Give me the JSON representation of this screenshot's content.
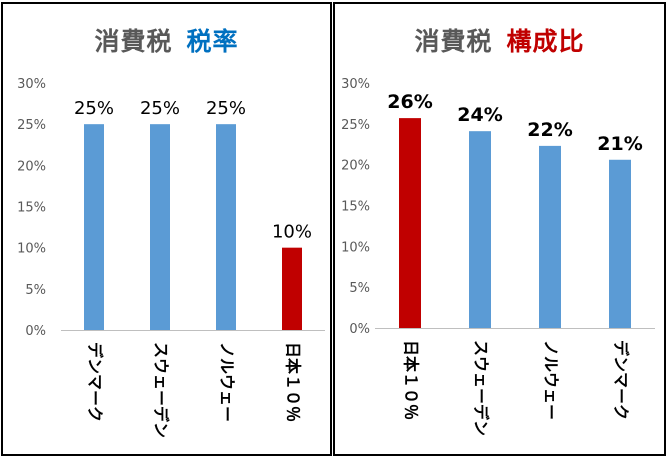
{
  "colors": {
    "blue_bar": "#5b9bd5",
    "red_bar": "#c00000",
    "title_gray": "#595959",
    "title_blue": "#0070c0",
    "title_red": "#c00000",
    "axis_text": "#595959",
    "grid": "#d9d9d9"
  },
  "chart_data": [
    {
      "type": "bar",
      "title_part1": "消費税",
      "title_part2": "税率",
      "title_part2_color": "#0070c0",
      "categories": [
        "デンマーク",
        "スウェーデン",
        "ノルウェー",
        "日本１０％"
      ],
      "values": [
        25,
        25,
        25,
        10
      ],
      "data_labels": [
        "25%",
        "25%",
        "25%",
        "10%"
      ],
      "bar_colors": [
        "#5b9bd5",
        "#5b9bd5",
        "#5b9bd5",
        "#c00000"
      ],
      "label_bold": false,
      "ylim": [
        0,
        30
      ],
      "yticks": [
        "0%",
        "5%",
        "10%",
        "15%",
        "20%",
        "25%",
        "30%"
      ],
      "grid": false,
      "legend": "none"
    },
    {
      "type": "bar",
      "title_part1": "消費税",
      "title_part2": "構成比",
      "title_part2_color": "#c00000",
      "categories": [
        "日本１０％",
        "スウェーデン",
        "ノルウェー",
        "デンマーク"
      ],
      "values": [
        25.7,
        24.1,
        22.3,
        20.6
      ],
      "data_labels": [
        "26%",
        "24%",
        "22%",
        "21%"
      ],
      "bar_colors": [
        "#c00000",
        "#5b9bd5",
        "#5b9bd5",
        "#5b9bd5"
      ],
      "label_bold": true,
      "ylim": [
        0,
        30
      ],
      "yticks": [
        "0%",
        "5%",
        "10%",
        "15%",
        "20%",
        "25%",
        "30%"
      ],
      "grid": false,
      "legend": "none"
    }
  ]
}
